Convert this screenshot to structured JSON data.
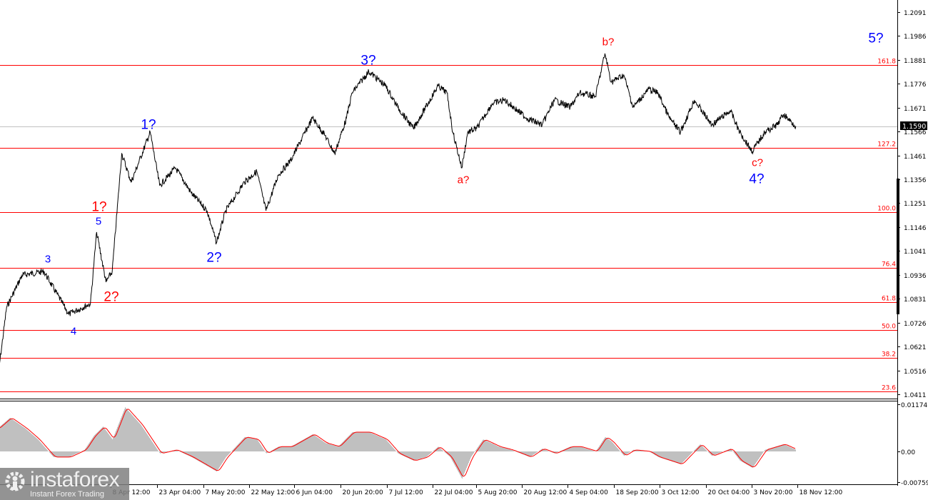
{
  "chart_data": [
    {
      "type": "line",
      "panel": "price",
      "y_ticks": [
        "1.2091",
        "1.1986",
        "1.1881",
        "1.1776",
        "1.1671",
        "1.1566",
        "1.1461",
        "1.1356",
        "1.1251",
        "1.1146",
        "1.1041",
        "1.0936",
        "1.0831",
        "1.0726",
        "1.0621",
        "1.0516",
        "1.0411"
      ],
      "ylim": [
        1.0411,
        1.2091
      ],
      "current_price": "1.1590",
      "x_ticks": [
        "8 Apr 12:00",
        "23 Apr 04:00",
        "7 May 20:00",
        "22 May 12:00",
        "6 Jun 04:00",
        "20 Jun 20:00",
        "7 Jul 12:00",
        "22 Jul 04:00",
        "5 Aug 20:00",
        "20 Aug 12:00",
        "4 Sep 04:00",
        "18 Sep 20:00",
        "3 Oct 12:00",
        "20 Oct 04:00",
        "3 Nov 20:00",
        "18 Nov 12:00"
      ],
      "series": [
        {
          "color": "#000000",
          "points": [
            [
              "3 Mar",
              1.0464
            ],
            [
              "6 Mar",
              1.0794
            ],
            [
              "11 Mar",
              1.0935
            ],
            [
              "18 Mar",
              1.0951
            ],
            [
              "26 Mar",
              1.0763
            ],
            [
              "2 Apr",
              1.081
            ],
            [
              "4 Apr",
              1.1124
            ],
            [
              "7 Apr",
              1.0904
            ],
            [
              "9 Apr",
              1.0951
            ],
            [
              "12 Apr",
              1.1469
            ],
            [
              "15 Apr",
              1.1344
            ],
            [
              "21 Apr",
              1.1563
            ],
            [
              "24 Apr",
              1.1328
            ],
            [
              "29 Apr",
              1.1406
            ],
            [
              "4 May",
              1.1296
            ],
            [
              "9 May",
              1.1218
            ],
            [
              "12 May",
              1.1077
            ],
            [
              "15 May",
              1.1218
            ],
            [
              "21 May",
              1.1344
            ],
            [
              "25 May",
              1.1391
            ],
            [
              "28 May",
              1.1218
            ],
            [
              "1 Jun",
              1.1375
            ],
            [
              "5 Jun",
              1.1438
            ],
            [
              "12 Jun",
              1.1626
            ],
            [
              "16 Jun",
              1.1548
            ],
            [
              "19 Jun",
              1.1469
            ],
            [
              "23 Jun",
              1.1626
            ],
            [
              "25 Jun",
              1.1736
            ],
            [
              "1 Jul",
              1.183
            ],
            [
              "7 Jul",
              1.1767
            ],
            [
              "11 Jul",
              1.1673
            ],
            [
              "16 Jul",
              1.1579
            ],
            [
              "20 Jul",
              1.1673
            ],
            [
              "24 Jul",
              1.1767
            ],
            [
              "27 Jul",
              1.1736
            ],
            [
              "29 Jul",
              1.1563
            ],
            [
              "1 Aug",
              1.1406
            ],
            [
              "3 Aug",
              1.1563
            ],
            [
              "6 Aug",
              1.1579
            ],
            [
              "11 Aug",
              1.1689
            ],
            [
              "15 Aug",
              1.1705
            ],
            [
              "22 Aug",
              1.1626
            ],
            [
              "27 Aug",
              1.1595
            ],
            [
              "31 Aug",
              1.1705
            ],
            [
              "5 Sep",
              1.1673
            ],
            [
              "8 Sep",
              1.1736
            ],
            [
              "13 Sep",
              1.172
            ],
            [
              "16 Sep",
              1.1909
            ],
            [
              "18 Sep",
              1.1783
            ],
            [
              "22 Sep",
              1.1815
            ],
            [
              "25 Sep",
              1.1673
            ],
            [
              "30 Sep",
              1.1752
            ],
            [
              "3 Oct",
              1.1736
            ],
            [
              "7 Oct",
              1.1626
            ],
            [
              "11 Oct",
              1.1563
            ],
            [
              "16 Oct",
              1.1705
            ],
            [
              "22 Oct",
              1.1595
            ],
            [
              "28 Oct",
              1.1658
            ],
            [
              "31 Oct",
              1.1563
            ],
            [
              "4 Nov",
              1.1479
            ],
            [
              "8 Nov",
              1.1563
            ],
            [
              "12 Nov",
              1.1595
            ],
            [
              "14 Nov",
              1.1642
            ],
            [
              "18 Nov",
              1.159
            ]
          ]
        }
      ],
      "fibonacci_levels": [
        {
          "label": "161.8",
          "price": 1.1858
        },
        {
          "label": "127.2",
          "price": 1.1494
        },
        {
          "label": "100.0",
          "price": 1.1212
        },
        {
          "label": "76.4",
          "price": 1.0967
        },
        {
          "label": "61.8",
          "price": 1.0816
        },
        {
          "label": "50.0",
          "price": 1.0694
        },
        {
          "label": "38.2",
          "price": 1.0571
        },
        {
          "label": "23.6",
          "price": 1.0424
        }
      ],
      "fib_color": "#ff0000",
      "wave_labels": {
        "w3": "3",
        "w4": "4",
        "w5": "5",
        "r1": "1?",
        "r2": "2?",
        "b1": "1?",
        "b2": "2?",
        "b3": "3?",
        "a": "a?",
        "b": "b?",
        "c": "c?",
        "b4": "4?",
        "b5": "5?"
      },
      "wave_colors": {
        "impulse": "#0000ff",
        "corrective": "#ff0000"
      }
    },
    {
      "type": "area",
      "panel": "oscillator",
      "y_ticks": [
        "0.01174",
        "0.00",
        "-0.00759"
      ],
      "ylim": [
        -0.00759,
        0.01174
      ],
      "histogram_color": "#c0c0c0",
      "signal_color": "#ff0000",
      "values": [
        [
          "3 Mar",
          0.0057
        ],
        [
          "7 Mar",
          0.0084
        ],
        [
          "12 Mar",
          0.0057
        ],
        [
          "16 Mar",
          0.003
        ],
        [
          "21 Mar",
          -0.0014
        ],
        [
          "26 Mar",
          -0.0014
        ],
        [
          "31 Mar",
          0.0004
        ],
        [
          "3 Apr",
          0.0039
        ],
        [
          "6 Apr",
          0.0062
        ],
        [
          "9 Apr",
          0.003
        ],
        [
          "13 Apr",
          0.011
        ],
        [
          "18 Apr",
          0.0066
        ],
        [
          "24 Apr",
          -0.0005
        ],
        [
          "29 Apr",
          0.0004
        ],
        [
          "4 May",
          -0.0014
        ],
        [
          "12 May",
          -0.005
        ],
        [
          "15 May",
          -0.0014
        ],
        [
          "21 May",
          0.0036
        ],
        [
          "25 May",
          0.003
        ],
        [
          "28 May",
          -0.0005
        ],
        [
          "1 Jun",
          0.0012
        ],
        [
          "5 Jun",
          0.0012
        ],
        [
          "12 Jun",
          0.0043
        ],
        [
          "16 Jun",
          0.0021
        ],
        [
          "20 Jun",
          0.0012
        ],
        [
          "25 Jun",
          0.0048
        ],
        [
          "1 Jul",
          0.0048
        ],
        [
          "7 Jul",
          0.003
        ],
        [
          "11 Jul",
          -0.0005
        ],
        [
          "16 Jul",
          -0.0023
        ],
        [
          "20 Jul",
          -0.0014
        ],
        [
          "24 Jul",
          0.0012
        ],
        [
          "28 Jul",
          -0.0014
        ],
        [
          "1 Aug",
          -0.0068
        ],
        [
          "4 Aug",
          -0.0014
        ],
        [
          "8 Aug",
          0.003
        ],
        [
          "13 Aug",
          0.0012
        ],
        [
          "17 Aug",
          0.0004
        ],
        [
          "23 Aug",
          -0.0014
        ],
        [
          "27 Aug",
          0.0007
        ],
        [
          "31 Aug",
          -0.0005
        ],
        [
          "5 Sep",
          0.0012
        ],
        [
          "8 Sep",
          0.0012
        ],
        [
          "13 Sep",
          0.0
        ],
        [
          "16 Sep",
          0.0036
        ],
        [
          "18 Sep",
          0.0025
        ],
        [
          "22 Sep",
          -0.0011
        ],
        [
          "25 Sep",
          0.0004
        ],
        [
          "30 Sep",
          0.0
        ],
        [
          "3 Oct",
          -0.0014
        ],
        [
          "7 Oct",
          -0.0023
        ],
        [
          "11 Oct",
          -0.0032
        ],
        [
          "18 Oct",
          0.0018
        ],
        [
          "22 Oct",
          -0.0011
        ],
        [
          "28 Oct",
          0.0007
        ],
        [
          "31 Oct",
          -0.0023
        ],
        [
          "4 Nov",
          -0.0041
        ],
        [
          "8 Nov",
          0.0004
        ],
        [
          "14 Nov",
          0.0018
        ],
        [
          "18 Nov",
          0.0004
        ]
      ]
    }
  ],
  "watermark": {
    "brand": "instaforex",
    "tagline": "Instant Forex Trading"
  }
}
